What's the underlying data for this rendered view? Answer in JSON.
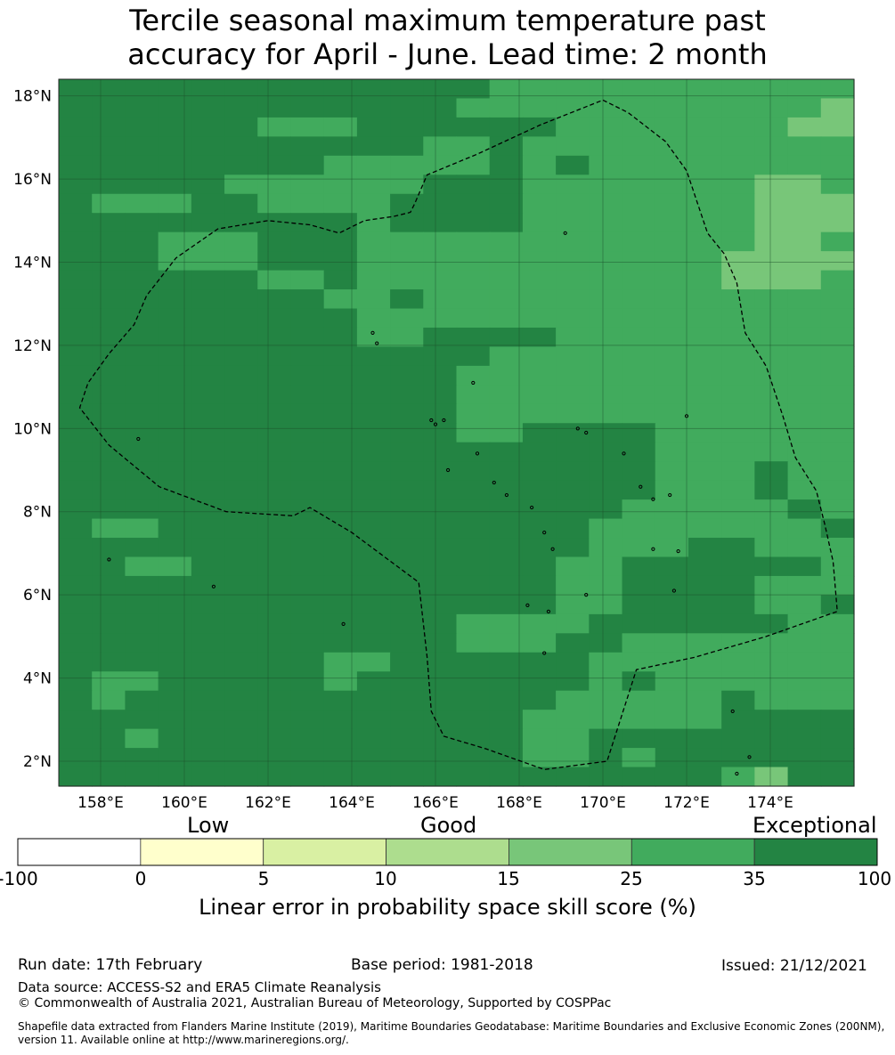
{
  "title": {
    "line1": "Tercile seasonal maximum temperature past",
    "line2": "accuracy for April - June. Lead time: 2 month"
  },
  "map": {
    "lon_range": [
      157.0,
      176.0
    ],
    "lat_range": [
      1.4,
      18.4
    ],
    "lon_ticks": [
      {
        "value": 158,
        "label": "158°E"
      },
      {
        "value": 160,
        "label": "160°E"
      },
      {
        "value": 162,
        "label": "162°E"
      },
      {
        "value": 164,
        "label": "164°E"
      },
      {
        "value": 166,
        "label": "166°E"
      },
      {
        "value": 168,
        "label": "168°E"
      },
      {
        "value": 170,
        "label": "170°E"
      },
      {
        "value": 172,
        "label": "172°E"
      },
      {
        "value": 174,
        "label": "174°E"
      }
    ],
    "lat_ticks": [
      {
        "value": 18,
        "label": "18°N"
      },
      {
        "value": 16,
        "label": "16°N"
      },
      {
        "value": 14,
        "label": "14°N"
      },
      {
        "value": 12,
        "label": "12°N"
      },
      {
        "value": 10,
        "label": "10°N"
      },
      {
        "value": 8,
        "label": "8°N"
      },
      {
        "value": 6,
        "label": "6°N"
      },
      {
        "value": 4,
        "label": "4°N"
      },
      {
        "value": 2,
        "label": "2°N"
      }
    ],
    "grid_class_colors": {
      "1": "#78c679",
      "2": "#41ab5d",
      "3": "#238443"
    },
    "grid_rows": [
      "333333333333322222222222",
      "333333333333222222222221",
      "333333222333333222222211",
      "333333333332232222222222",
      "333333332222232322222222",
      "333332222223332222222112",
      "322233222233332222222111",
      "333333333233332222222111",
      "333222333222222222222112",
      "333222333222222222221111",
      "333333223222222222221112",
      "333333332232222222222222",
      "333333333222222222222222",
      "333333333223333222222222",
      "333333333333322222222222",
      "333333333333222222222222",
      "333333333333222222222222",
      "333333333333222222222222",
      "333333333333223333222222",
      "333333333333333333222222",
      "333333333333333333222322",
      "333333333333333333222322",
      "333333333333333332222232",
      "322333333333333322222223",
      "333333333333333322233222",
      "332233333333333223333332",
      "333333333333333223333222",
      "333333333333333223333223",
      "333333333333222233333322",
      "333333333333222332222222",
      "333333332233333322222222",
      "322333332333333323222222",
      "323333333333333222223222",
      "333333333333332222223333",
      "332333333333332233333333",
      "333333333333332232333333",
      "333333333333333333332133"
    ],
    "eez_boundary": [
      [
        170.0,
        17.9
      ],
      [
        170.6,
        17.6
      ],
      [
        171.5,
        16.9
      ],
      [
        172.0,
        16.2
      ],
      [
        172.3,
        15.3
      ],
      [
        172.5,
        14.7
      ],
      [
        172.9,
        14.2
      ],
      [
        173.2,
        13.5
      ],
      [
        173.4,
        12.3
      ],
      [
        173.9,
        11.5
      ],
      [
        174.3,
        10.3
      ],
      [
        174.6,
        9.3
      ],
      [
        175.1,
        8.5
      ],
      [
        175.3,
        7.7
      ],
      [
        175.5,
        6.8
      ],
      [
        175.6,
        5.6
      ],
      [
        173.9,
        5.0
      ],
      [
        172.2,
        4.5
      ],
      [
        170.8,
        4.2
      ],
      [
        170.1,
        2.0
      ],
      [
        168.6,
        1.8
      ],
      [
        167.2,
        2.3
      ],
      [
        166.2,
        2.6
      ],
      [
        165.9,
        3.2
      ],
      [
        165.8,
        4.5
      ],
      [
        165.6,
        6.3
      ],
      [
        164.8,
        6.9
      ],
      [
        164.0,
        7.5
      ],
      [
        163.0,
        8.1
      ],
      [
        162.6,
        7.9
      ],
      [
        161.0,
        8.0
      ],
      [
        159.4,
        8.6
      ],
      [
        158.2,
        9.6
      ],
      [
        157.5,
        10.5
      ],
      [
        157.7,
        11.1
      ],
      [
        158.2,
        11.8
      ],
      [
        158.8,
        12.5
      ],
      [
        159.1,
        13.2
      ],
      [
        159.8,
        14.1
      ],
      [
        160.8,
        14.8
      ],
      [
        162.0,
        15.0
      ],
      [
        163.0,
        14.9
      ],
      [
        163.7,
        14.7
      ],
      [
        164.3,
        15.0
      ],
      [
        165.0,
        15.1
      ],
      [
        165.4,
        15.2
      ],
      [
        165.5,
        15.4
      ],
      [
        165.8,
        16.1
      ],
      [
        167.0,
        16.6
      ],
      [
        168.5,
        17.3
      ],
      [
        170.0,
        17.9
      ]
    ],
    "islands": [
      [
        158.2,
        6.85
      ],
      [
        163.8,
        5.3
      ],
      [
        158.9,
        9.75
      ],
      [
        160.7,
        6.2
      ],
      [
        164.5,
        12.3
      ],
      [
        164.6,
        12.05
      ],
      [
        166.0,
        10.1
      ],
      [
        166.9,
        11.1
      ],
      [
        166.3,
        9.0
      ],
      [
        167.4,
        8.7
      ],
      [
        167.7,
        8.4
      ],
      [
        168.3,
        8.1
      ],
      [
        168.6,
        7.5
      ],
      [
        168.8,
        7.1
      ],
      [
        168.2,
        5.75
      ],
      [
        168.7,
        5.6
      ],
      [
        169.6,
        6.0
      ],
      [
        171.2,
        7.1
      ],
      [
        171.8,
        7.05
      ],
      [
        171.7,
        6.1
      ],
      [
        170.5,
        9.4
      ],
      [
        170.9,
        8.6
      ],
      [
        171.2,
        8.3
      ],
      [
        171.6,
        8.4
      ],
      [
        172.0,
        10.3
      ],
      [
        169.4,
        10.0
      ],
      [
        169.6,
        9.9
      ],
      [
        168.6,
        4.6
      ],
      [
        173.1,
        3.2
      ],
      [
        173.5,
        2.1
      ],
      [
        173.2,
        1.7
      ],
      [
        165.9,
        10.2
      ],
      [
        169.1,
        14.7
      ],
      [
        167.0,
        9.4
      ],
      [
        166.2,
        10.2
      ]
    ]
  },
  "colorbar": {
    "categories": [
      {
        "label": "Low",
        "center": 1.5
      },
      {
        "label": "Good",
        "center": 3.5
      },
      {
        "label": "Exceptional",
        "center": 6.3
      }
    ],
    "bins": [
      {
        "color": "#ffffff"
      },
      {
        "color": "#ffffcc"
      },
      {
        "color": "#d9f0a3"
      },
      {
        "color": "#addd8e"
      },
      {
        "color": "#78c679"
      },
      {
        "color": "#41ab5d"
      },
      {
        "color": "#238443"
      }
    ],
    "ticks": [
      "-100",
      "0",
      "5",
      "10",
      "15",
      "25",
      "35",
      "100"
    ],
    "caption": "Linear error in probability space skill score (%)"
  },
  "footer": {
    "run_date": "Run date: 17th February",
    "base_period": "Base period: 1981-2018",
    "issued": "Issued: 21/12/2021",
    "data_source": "Data source: ACCESS-S2 and ERA5 Climate Reanalysis",
    "copyright": "© Commonwealth of Australia 2021, Australian Bureau of Meteorology, Supported by COSPPac",
    "shapefile_line1": "Shapefile data extracted from Flanders Marine Institute (2019), Maritime Boundaries Geodatabase: Maritime Boundaries and Exclusive Economic Zones (200NM),",
    "shapefile_line2": "version 11. Available online at http://www.marineregions.org/."
  }
}
